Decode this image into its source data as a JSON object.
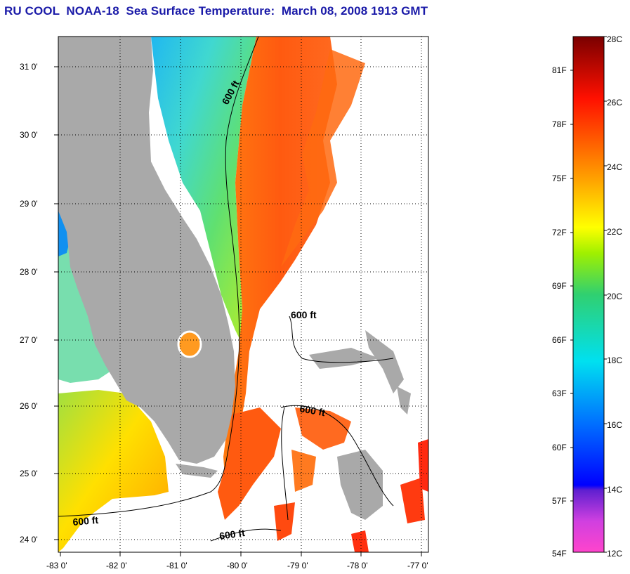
{
  "title": "RU COOL  NOAA-18  Sea Surface Temperature:  March 08, 2008 1913 GMT",
  "map": {
    "lat_labels": [
      "24 0'",
      "25 0'",
      "26 0'",
      "27 0'",
      "28 0'",
      "29 0'",
      "30 0'",
      "31 0'"
    ],
    "lon_labels": [
      "-83 0'",
      "-82 0'",
      "-81 0'",
      "-80 0'",
      "-79 0'",
      "-78 0'",
      "-77 0'"
    ],
    "isobath_labels": [
      "600 ft",
      "600 ft",
      "600 ft",
      "600 ft",
      "600 ft"
    ],
    "colors": {
      "land": "#a9a9a9",
      "nodata": "#ffffff",
      "gridline": "#000000"
    }
  },
  "colorbar": {
    "celsius_labels": [
      "28C",
      "26C",
      "24C",
      "22C",
      "20C",
      "18C",
      "16C",
      "14C",
      "12C"
    ],
    "fahrenheit_labels": [
      "81F",
      "78F",
      "75F",
      "72F",
      "69F",
      "66F",
      "63F",
      "60F",
      "57F",
      "54F"
    ],
    "colors": [
      "#ff44cc",
      "#8a2be2",
      "#0000ff",
      "#0080ff",
      "#00e0ff",
      "#20d080",
      "#7cfc00",
      "#ffff00",
      "#ffa000",
      "#ff5000",
      "#ff0000",
      "#8b0000"
    ]
  }
}
